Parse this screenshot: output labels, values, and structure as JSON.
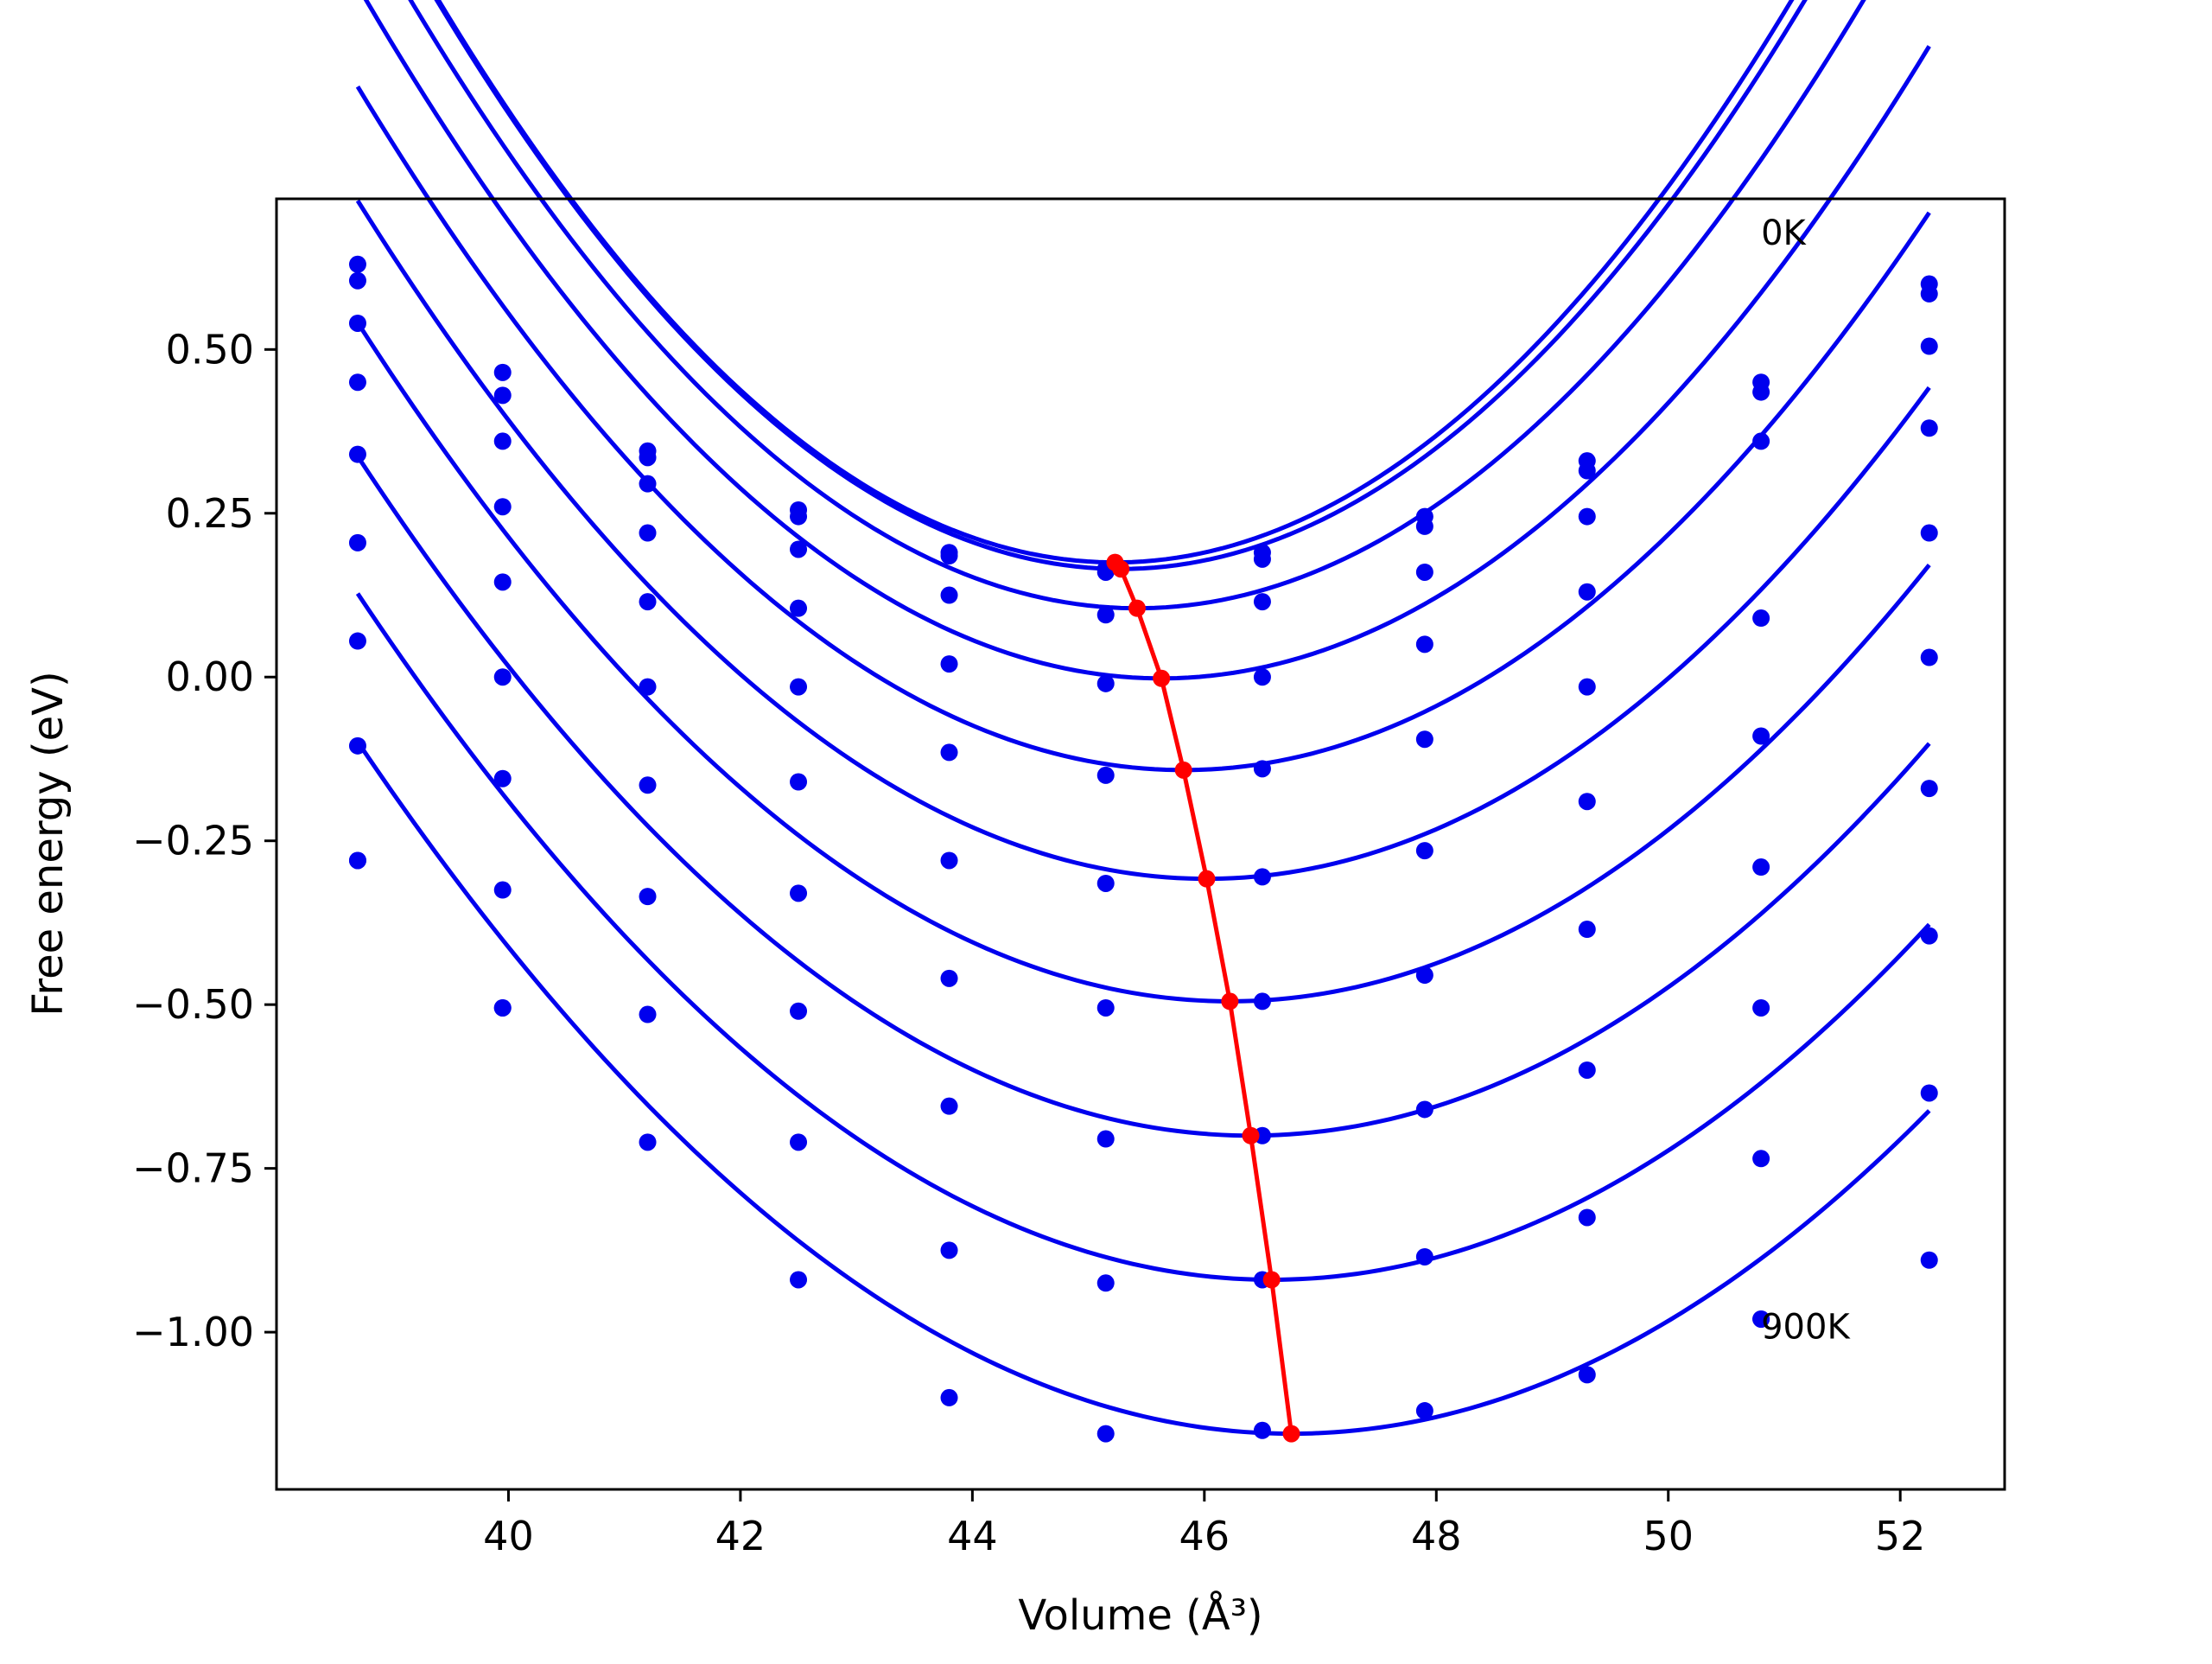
{
  "chart_data": {
    "type": "scatter",
    "title": "",
    "xlabel": "Volume (Å³)",
    "ylabel": "Free energy (eV)",
    "xlim": [
      38.0,
      52.9
    ],
    "ylim": [
      -1.24,
      0.73
    ],
    "x_ticks": [
      40,
      42,
      44,
      46,
      48,
      50,
      52
    ],
    "x_tick_labels": [
      "40",
      "42",
      "44",
      "46",
      "48",
      "50",
      "52"
    ],
    "y_ticks": [
      -1.0,
      -0.75,
      -0.5,
      -0.25,
      0.0,
      0.25,
      0.5
    ],
    "y_tick_labels": [
      "−1.00",
      "−0.75",
      "−0.50",
      "−0.25",
      "0.00",
      "0.25",
      "0.50"
    ],
    "grid": false,
    "annotations": [
      {
        "text": "0K",
        "x": 50.8,
        "y": 0.66
      },
      {
        "text": "900K",
        "x": 50.8,
        "y": -1.01
      }
    ],
    "volumes": [
      38.7,
      39.95,
      41.2,
      42.5,
      43.8,
      45.15,
      46.5,
      47.9,
      49.3,
      50.8,
      52.25
    ],
    "series": [
      {
        "color": "#0000ee",
        "fit": {
          "x0": 45.23,
          "y0": 0.175,
          "c": 0.02522
        },
        "points": [
          0.63,
          0.465,
          0.345,
          0.255,
          0.19,
          0.165,
          0.19,
          0.245,
          0.33,
          0.45,
          0.6
        ]
      },
      {
        "color": "#0000ee",
        "fit": {
          "x0": 45.28,
          "y0": 0.165,
          "c": 0.02496
        },
        "points": [
          0.605,
          0.43,
          0.335,
          0.245,
          0.185,
          0.16,
          0.18,
          0.23,
          0.315,
          0.435,
          0.585
        ]
      },
      {
        "color": "#0000ee",
        "fit": {
          "x0": 45.42,
          "y0": 0.105,
          "c": 0.02366
        },
        "points": [
          0.54,
          0.36,
          0.295,
          0.195,
          0.125,
          0.095,
          0.115,
          0.16,
          0.245,
          0.36,
          0.505
        ]
      },
      {
        "color": "#0000ee",
        "fit": {
          "x0": 45.63,
          "y0": -0.002,
          "c": 0.02202
        },
        "points": [
          0.45,
          0.26,
          0.22,
          0.105,
          0.02,
          -0.01,
          0.0,
          0.05,
          0.13,
          0.09,
          0.38
        ]
      },
      {
        "color": "#0000ee",
        "fit": {
          "x0": 45.82,
          "y0": -0.142,
          "c": 0.02058
        },
        "points": [
          0.34,
          0.145,
          0.115,
          -0.015,
          -0.115,
          -0.15,
          -0.14,
          -0.095,
          -0.015,
          -0.09,
          0.22
        ]
      },
      {
        "color": "#0000ee",
        "fit": {
          "x0": 46.02,
          "y0": -0.308,
          "c": 0.01932
        },
        "points": [
          0.205,
          0.0,
          -0.015,
          -0.16,
          -0.28,
          -0.315,
          -0.305,
          -0.265,
          -0.19,
          -0.29,
          0.03
        ]
      },
      {
        "color": "#0000ee",
        "fit": {
          "x0": 46.22,
          "y0": -0.495,
          "c": 0.01832
        },
        "points": [
          0.055,
          -0.155,
          -0.165,
          -0.33,
          -0.46,
          -0.505,
          -0.495,
          -0.455,
          -0.385,
          -0.505,
          -0.17
        ]
      },
      {
        "color": "#0000ee",
        "fit": {
          "x0": 46.4,
          "y0": -0.7,
          "c": 0.01749
        },
        "points": [
          -0.105,
          -0.325,
          -0.335,
          -0.51,
          -0.655,
          -0.705,
          -0.7,
          -0.66,
          -0.6,
          -0.735,
          -0.395
        ]
      },
      {
        "color": "#0000ee",
        "fit": {
          "x0": 46.58,
          "y0": -0.92,
          "c": 0.01687
        },
        "points": [
          -0.28,
          -0.505,
          -0.515,
          -0.71,
          -0.875,
          -0.925,
          -0.92,
          -0.885,
          -0.825,
          -0.98,
          -0.635
        ]
      },
      {
        "color": "#0000ee",
        "fit": {
          "x0": 46.75,
          "y0": -1.155,
          "c": 0.0163
        },
        "points": [
          -0.28,
          -0.505,
          -0.71,
          -0.92,
          -1.1,
          -1.155,
          -1.15,
          -1.12,
          -1.065,
          -0.98,
          -0.89
        ]
      }
    ],
    "minimum_line": {
      "color": "#ff0000",
      "points": [
        {
          "x": 45.23,
          "y": 0.175
        },
        {
          "x": 45.28,
          "y": 0.165
        },
        {
          "x": 45.42,
          "y": 0.105
        },
        {
          "x": 45.63,
          "y": -0.002
        },
        {
          "x": 45.82,
          "y": -0.142
        },
        {
          "x": 46.02,
          "y": -0.308
        },
        {
          "x": 46.22,
          "y": -0.495
        },
        {
          "x": 46.4,
          "y": -0.7
        },
        {
          "x": 46.58,
          "y": -0.92
        },
        {
          "x": 46.75,
          "y": -1.155
        }
      ]
    }
  }
}
